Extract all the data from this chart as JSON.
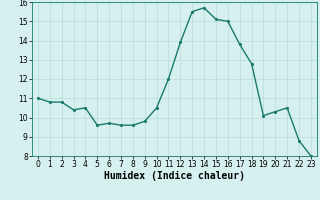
{
  "x": [
    0,
    1,
    2,
    3,
    4,
    5,
    6,
    7,
    8,
    9,
    10,
    11,
    12,
    13,
    14,
    15,
    16,
    17,
    18,
    19,
    20,
    21,
    22,
    23
  ],
  "y": [
    11.0,
    10.8,
    10.8,
    10.4,
    10.5,
    9.6,
    9.7,
    9.6,
    9.6,
    9.8,
    10.5,
    12.0,
    13.9,
    15.5,
    15.7,
    15.1,
    15.0,
    13.8,
    12.8,
    10.1,
    10.3,
    10.5,
    8.8,
    8.0
  ],
  "line_color": "#1a7a6e",
  "marker_color": "#1a7a6e",
  "bg_color": "#d6f0ef",
  "grid_color": "#b8dbd8",
  "xlabel": "Humidex (Indice chaleur)",
  "ylim": [
    8,
    16
  ],
  "xlim": [
    -0.5,
    23.5
  ],
  "yticks": [
    8,
    9,
    10,
    11,
    12,
    13,
    14,
    15,
    16
  ],
  "xticks": [
    0,
    1,
    2,
    3,
    4,
    5,
    6,
    7,
    8,
    9,
    10,
    11,
    12,
    13,
    14,
    15,
    16,
    17,
    18,
    19,
    20,
    21,
    22,
    23
  ],
  "tick_fontsize": 5.5,
  "xlabel_fontsize": 7,
  "line_width": 1.0,
  "marker_size": 2.5
}
